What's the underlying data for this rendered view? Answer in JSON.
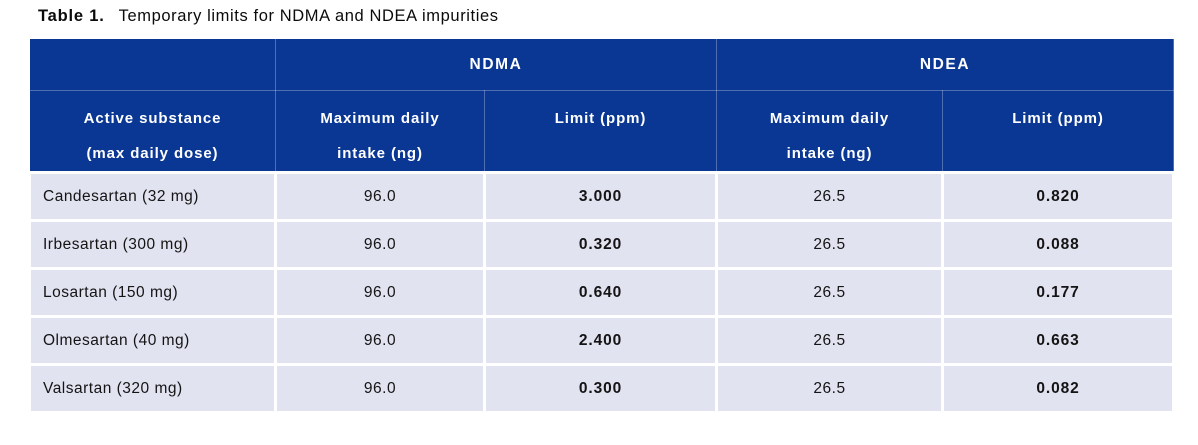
{
  "title": {
    "label": "Table 1.",
    "text": "Temporary limits for NDMA and NDEA impurities"
  },
  "table": {
    "group_headers": {
      "ndma": "NDMA",
      "ndea": "NDEA"
    },
    "column_headers": {
      "substance_line1": "Active substance",
      "substance_line2": "(max daily dose)",
      "intake_line1": "Maximum daily",
      "intake_line2": "intake (ng)",
      "limit": "Limit (ppm)"
    },
    "rows": [
      {
        "substance": "Candesartan (32 mg)",
        "ndma_intake": "96.0",
        "ndma_limit": "3.000",
        "ndea_intake": "26.5",
        "ndea_limit": "0.820"
      },
      {
        "substance": "Irbesartan (300 mg)",
        "ndma_intake": "96.0",
        "ndma_limit": "0.320",
        "ndea_intake": "26.5",
        "ndea_limit": "0.088"
      },
      {
        "substance": "Losartan (150 mg)",
        "ndma_intake": "96.0",
        "ndma_limit": "0.640",
        "ndea_intake": "26.5",
        "ndea_limit": "0.177"
      },
      {
        "substance": "Olmesartan (40 mg)",
        "ndma_intake": "96.0",
        "ndma_limit": "2.400",
        "ndea_intake": "26.5",
        "ndea_limit": "0.663"
      },
      {
        "substance": "Valsartan (320 mg)",
        "ndma_intake": "96.0",
        "ndma_limit": "0.300",
        "ndea_intake": "26.5",
        "ndea_limit": "0.082"
      }
    ]
  },
  "colors": {
    "header_bg": "#0A3793",
    "header_text": "#FFFFFF",
    "header_divider": "rgba(255,255,255,0.28)",
    "row_bg": "#E1E3F0",
    "body_text": "#141414"
  }
}
